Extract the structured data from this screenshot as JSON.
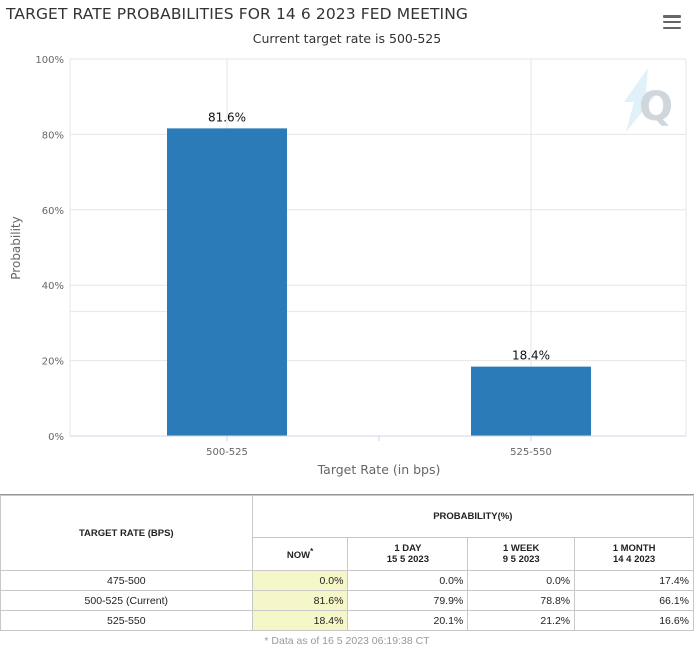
{
  "header": {
    "title": "TARGET RATE PROBABILITIES FOR 14 6 2023 FED MEETING",
    "subtitle": "Current target rate is 500-525"
  },
  "chart_data": {
    "type": "bar",
    "title": "TARGET RATE PROBABILITIES FOR 14 6 2023 FED MEETING",
    "subtitle": "Current target rate is 500-525",
    "categories": [
      "500-525",
      "525-550"
    ],
    "values": [
      81.6,
      18.4
    ],
    "data_labels": [
      "81.6%",
      "18.4%"
    ],
    "xlabel": "Target Rate (in bps)",
    "ylabel": "Probability",
    "ylim": [
      0,
      100
    ],
    "y_ticks": [
      0,
      20,
      40,
      60,
      80,
      100
    ],
    "y_tick_labels": [
      "0%",
      "20%",
      "40%",
      "60%",
      "80%",
      "100%"
    ],
    "grid": true,
    "bar_color": "#2b7bb9"
  },
  "table": {
    "col_target": "TARGET RATE (BPS)",
    "col_probability": "PROBABILITY(%)",
    "sub_now": "NOW",
    "now_marker": "*",
    "sub_cols": [
      {
        "line1": "1 DAY",
        "line2": "15 5 2023"
      },
      {
        "line1": "1 WEEK",
        "line2": "9 5 2023"
      },
      {
        "line1": "1 MONTH",
        "line2": "14 4 2023"
      }
    ],
    "rows": [
      {
        "rate": "475-500",
        "now": "0.0%",
        "day": "0.0%",
        "week": "0.0%",
        "month": "17.4%"
      },
      {
        "rate": "500-525 (Current)",
        "now": "81.6%",
        "day": "79.9%",
        "week": "78.8%",
        "month": "66.1%"
      },
      {
        "rate": "525-550",
        "now": "18.4%",
        "day": "20.1%",
        "week": "21.2%",
        "month": "16.6%"
      }
    ],
    "footnote": "* Data as of 16 5 2023 06:19:38 CT"
  },
  "colors": {
    "bar": "#2b7bb9",
    "now_highlight": "#f5f7c8",
    "grid": "#e6e6e6",
    "watermark": "#cfd6dc"
  },
  "icons": {
    "menu": "hamburger-menu-icon",
    "watermark": "q-logo-icon"
  }
}
